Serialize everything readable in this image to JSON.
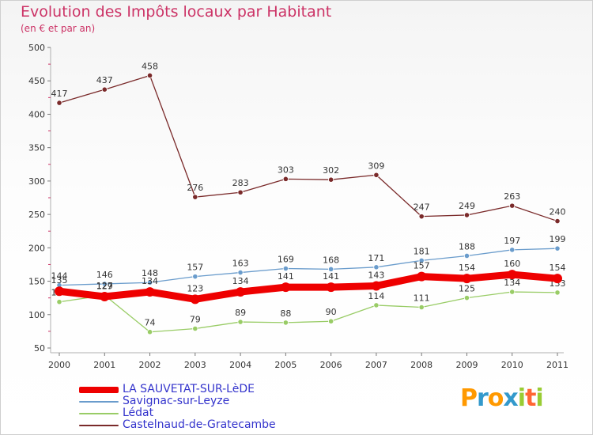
{
  "chart_data": {
    "type": "line",
    "title": "Evolution des Impôts locaux par Habitant",
    "subtitle": "(en € et par an)",
    "xlabel": "",
    "ylabel": "",
    "ylim": [
      50,
      500
    ],
    "yticks": [
      50,
      100,
      150,
      200,
      250,
      300,
      350,
      400,
      450,
      500
    ],
    "grid": false,
    "categories": [
      "2000",
      "2001",
      "2002",
      "2003",
      "2004",
      "2005",
      "2006",
      "2007",
      "2008",
      "2009",
      "2010",
      "2011"
    ],
    "series": [
      {
        "name": "Castelnaud-de-Gratecambe",
        "color": "#7a2a2a",
        "values": [
          417,
          437,
          458,
          276,
          283,
          303,
          302,
          309,
          247,
          249,
          263,
          240
        ]
      },
      {
        "name": "Savignac-sur-Leyze",
        "color": "#6a9ccc",
        "values": [
          144,
          146,
          148,
          157,
          163,
          169,
          168,
          171,
          181,
          188,
          197,
          199
        ]
      },
      {
        "name": "Lédat",
        "color": "#99cc66",
        "values": [
          119,
          129,
          74,
          79,
          89,
          88,
          90,
          114,
          111,
          125,
          134,
          133
        ]
      },
      {
        "name": "LA SAUVETAT-SUR-LèDE",
        "color": "#ee0000",
        "values": [
          135,
          127,
          134,
          123,
          134,
          141,
          141,
          143,
          157,
          154,
          160,
          154
        ]
      }
    ],
    "legend": [
      "LA SAUVETAT-SUR-LèDE",
      "Savignac-sur-Leyze",
      "Lédat",
      "Castelnaud-de-Gratecambe"
    ],
    "legend_position": "bottom-left"
  },
  "logo_text": "Proxiti"
}
